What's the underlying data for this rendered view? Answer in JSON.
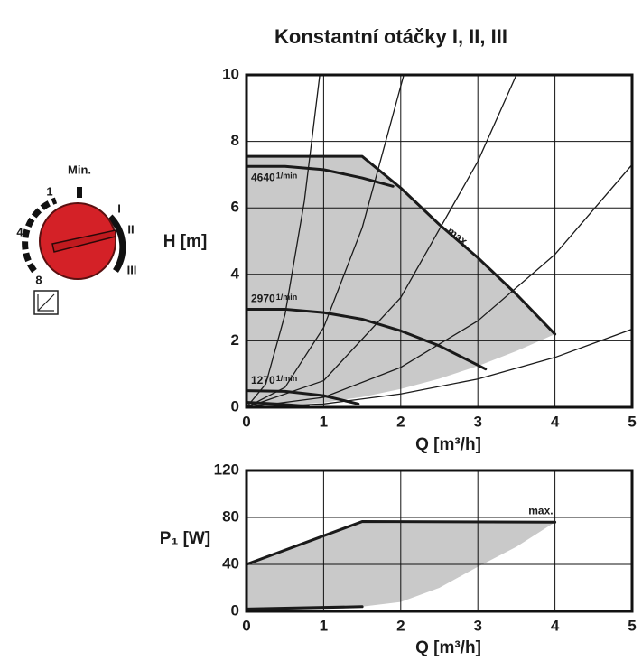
{
  "title": "Konstantní otáčky I, II, III",
  "dial": {
    "min": "Min.",
    "settings": [
      "1",
      "4",
      "8"
    ],
    "modes": [
      "I",
      "II",
      "III"
    ]
  },
  "chart_data": [
    {
      "type": "line",
      "xlabel": "Q [m³/h]",
      "ylabel": "H [m]",
      "xlim": [
        0,
        5
      ],
      "ylim": [
        0,
        10
      ],
      "xticks": [
        0,
        1,
        2,
        3,
        4,
        5
      ],
      "yticks": [
        0,
        2,
        4,
        6,
        8,
        10
      ],
      "grid": true,
      "region": {
        "color": "#c9c9c9",
        "x": [
          0,
          1,
          1.5,
          2,
          2.5,
          3,
          3.5,
          4
        ],
        "upper": [
          7.55,
          7.55,
          7.55,
          6.6,
          5.5,
          4.5,
          3.4,
          2.2
        ],
        "lower": [
          0,
          0.14,
          0.31,
          0.55,
          0.86,
          1.24,
          1.69,
          2.2
        ]
      },
      "series": [
        {
          "name": "max.",
          "color": "#1a1a1a",
          "width": 3,
          "x": [
            0,
            1.5,
            2,
            2.5,
            3,
            3.5,
            4
          ],
          "values": [
            7.55,
            7.55,
            6.6,
            5.5,
            4.5,
            3.4,
            2.2
          ]
        },
        {
          "name": "4640",
          "unit": "1/min",
          "color": "#1a1a1a",
          "width": 3,
          "x": [
            0,
            0.5,
            1,
            1.5,
            1.9
          ],
          "values": [
            7.25,
            7.25,
            7.15,
            6.9,
            6.65
          ]
        },
        {
          "name": "2970",
          "unit": "1/min",
          "color": "#1a1a1a",
          "width": 3,
          "x": [
            0,
            0.5,
            1,
            1.5,
            2,
            2.5,
            3.1
          ],
          "values": [
            2.95,
            2.95,
            2.85,
            2.65,
            2.3,
            1.85,
            1.15
          ]
        },
        {
          "name": "1270",
          "unit": "1/min",
          "color": "#1a1a1a",
          "width": 3,
          "x": [
            0,
            0.5,
            1,
            1.45
          ],
          "values": [
            0.5,
            0.48,
            0.35,
            0.1
          ]
        },
        {
          "color": "#1a1a1a",
          "width": 3,
          "x": [
            0,
            0.4,
            0.8
          ],
          "values": [
            0.15,
            0.1,
            0.03
          ]
        },
        {
          "color": "#1a1a1a",
          "width": 1.3,
          "x": [
            0,
            0.25,
            0.5,
            0.75,
            0.95
          ],
          "values": [
            0,
            0.7,
            2.8,
            6.2,
            10
          ]
        },
        {
          "color": "#1a1a1a",
          "width": 1.3,
          "x": [
            0,
            0.5,
            1,
            1.5,
            2.04
          ],
          "values": [
            0,
            0.6,
            2.4,
            5.4,
            10
          ]
        },
        {
          "color": "#1a1a1a",
          "width": 1.3,
          "x": [
            0,
            1,
            2,
            3,
            3.5
          ],
          "values": [
            0,
            0.8,
            3.3,
            7.4,
            10
          ]
        },
        {
          "color": "#1a1a1a",
          "width": 1.3,
          "x": [
            0,
            1,
            2,
            3,
            4,
            5
          ],
          "values": [
            0,
            0.3,
            1.2,
            2.6,
            4.6,
            7.3
          ]
        },
        {
          "color": "#1a1a1a",
          "width": 1.3,
          "x": [
            0,
            1,
            2,
            3,
            4,
            5
          ],
          "values": [
            0,
            0.1,
            0.4,
            0.85,
            1.5,
            2.35
          ]
        }
      ]
    },
    {
      "type": "line",
      "xlabel": "Q [m³/h]",
      "ylabel": "P₁ [W]",
      "xlim": [
        0,
        5
      ],
      "ylim": [
        0,
        120
      ],
      "xticks": [
        0,
        1,
        2,
        3,
        4,
        5
      ],
      "yticks": [
        0,
        40,
        80,
        120
      ],
      "grid": true,
      "region": {
        "color": "#c9c9c9",
        "x": [
          0,
          1.5,
          2,
          2.5,
          3,
          3.5,
          4
        ],
        "upper": [
          40,
          76.5,
          76.5,
          76.4,
          76.2,
          76.1,
          76
        ],
        "lower": [
          0,
          4,
          8,
          20,
          38,
          55,
          76
        ]
      },
      "series": [
        {
          "name": "max.",
          "color": "#1a1a1a",
          "width": 3,
          "x": [
            0,
            1.5,
            4
          ],
          "values": [
            40,
            76.5,
            76
          ]
        },
        {
          "color": "#1a1a1a",
          "width": 3,
          "x": [
            0,
            1.5
          ],
          "values": [
            2,
            4
          ]
        }
      ]
    }
  ]
}
